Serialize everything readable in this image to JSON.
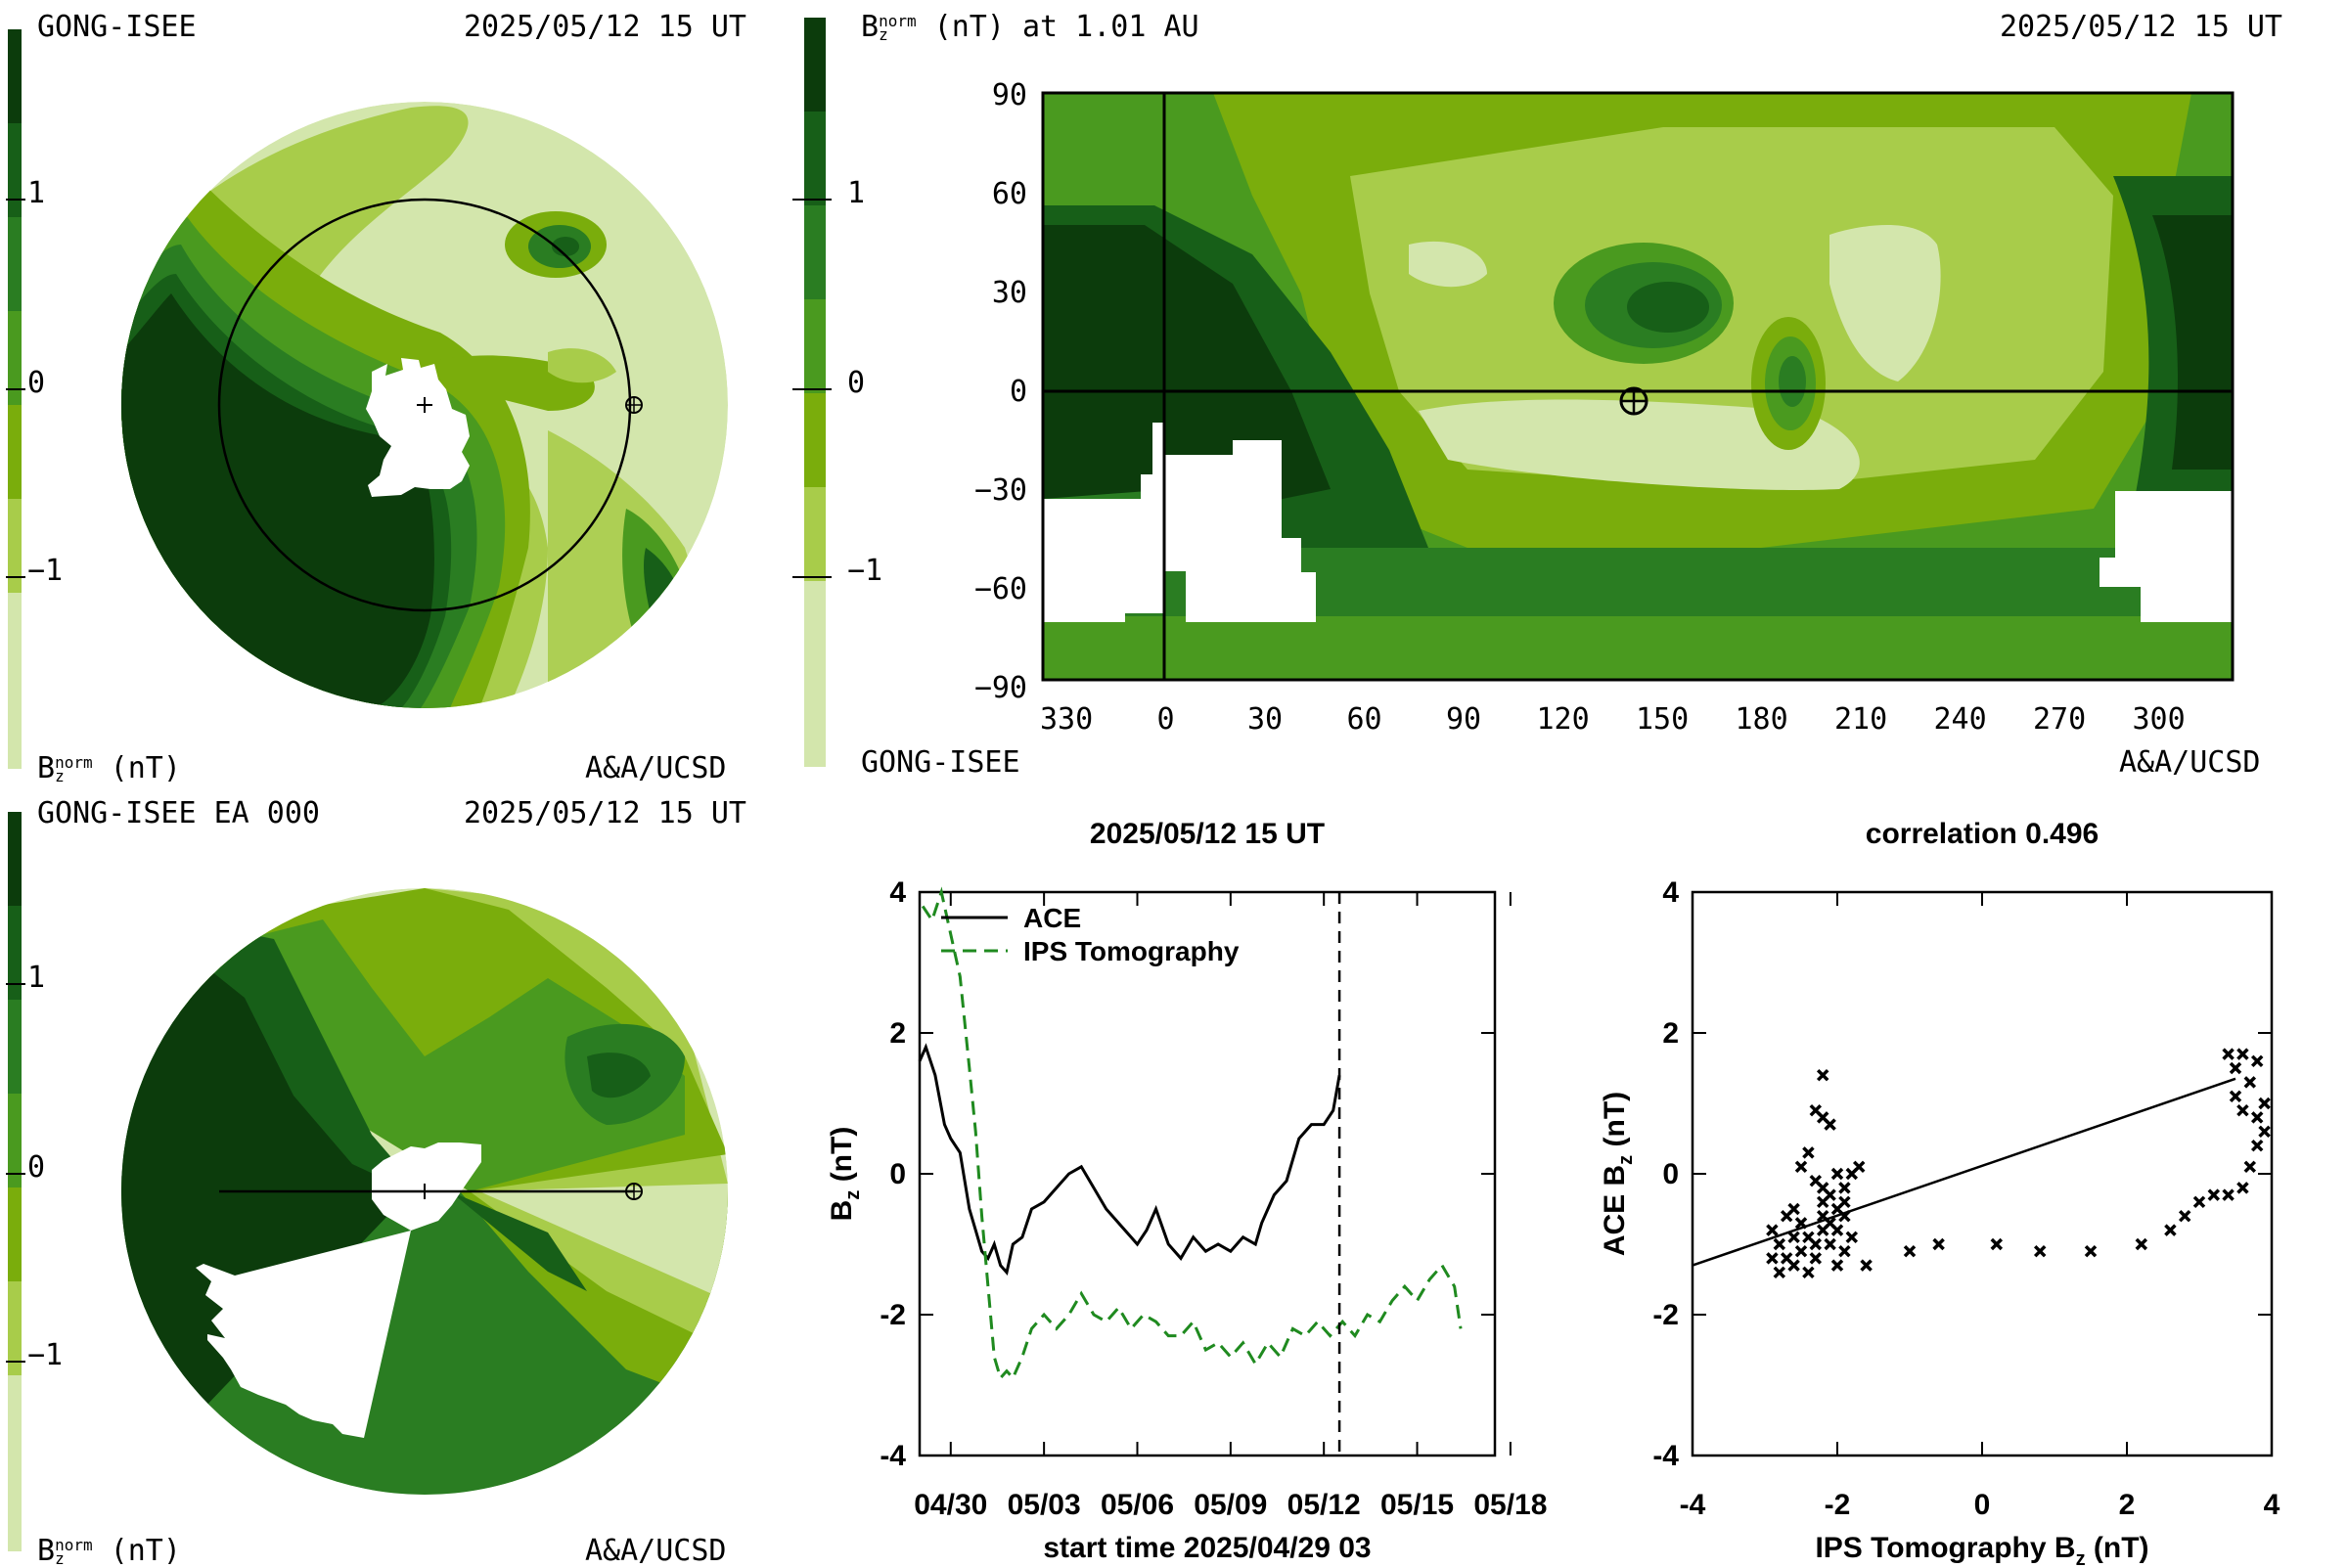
{
  "colors": {
    "scale": [
      "#d3e6ac",
      "#a8cc4a",
      "#7aad0c",
      "#4a9a1f",
      "#2a7d22",
      "#175f18",
      "#0c3c0c"
    ],
    "white": "#ffffff",
    "ips_line": "#1f8a1f",
    "ace_line": "#000000"
  },
  "colorbar": {
    "ticks": [
      "1",
      "0",
      "−1"
    ]
  },
  "panel_tl": {
    "title_left": "GONG-ISEE",
    "title_right": "2025/05/12 15 UT",
    "bottom_left": "B",
    "bottom_left_sub": "z",
    "bottom_left_sup": "norm",
    "bottom_left_unit": "(nT)",
    "bottom_right": "A&A/UCSD"
  },
  "panel_bl": {
    "title_left": "GONG-ISEE EA 000",
    "title_right": "2025/05/12 15 UT",
    "bottom_left": "B",
    "bottom_left_sub": "z",
    "bottom_left_sup": "norm",
    "bottom_left_unit": "(nT)",
    "bottom_right": "A&A/UCSD"
  },
  "panel_tr": {
    "title_left": "B",
    "title_left_sub": "z",
    "title_left_sup": "norm",
    "title_left_rest": "(nT) at 1.01 AU",
    "title_right": "2025/05/12 15 UT",
    "bottom_left": "GONG-ISEE",
    "bottom_right": "A&A/UCSD",
    "y_ticks": [
      "90",
      "60",
      "30",
      "0",
      "−30",
      "−60",
      "−90"
    ],
    "x_ticks": [
      "330",
      "0",
      "30",
      "60",
      "90",
      "120",
      "150",
      "180",
      "210",
      "240",
      "270",
      "300"
    ]
  },
  "chart_data": [
    {
      "type": "line",
      "title": "2025/05/12 15 UT",
      "xlabel": "start time 2025/04/29 03",
      "ylabel": "B_z (nT)",
      "ylim": [
        -4,
        4
      ],
      "x_unit": "days since start",
      "x_tick_labels": [
        "04/30",
        "05/03",
        "05/06",
        "05/09",
        "05/12",
        "05/15",
        "05/18"
      ],
      "y_tick_labels": [
        "4",
        "2",
        "0",
        "-2",
        "-4"
      ],
      "legend": [
        "ACE",
        "IPS Tomography"
      ],
      "current_time_marker": "2025/05/12 15 UT",
      "series": [
        {
          "name": "ACE",
          "x": [
            0.0,
            0.2,
            0.5,
            0.8,
            1.0,
            1.3,
            1.6,
            1.8,
            2.0,
            2.2,
            2.4,
            2.6,
            2.8,
            3.0,
            3.3,
            3.6,
            4.0,
            4.4,
            4.8,
            5.2,
            5.6,
            6.0,
            6.4,
            6.8,
            7.0,
            7.3,
            7.6,
            8.0,
            8.4,
            8.8,
            9.2,
            9.6,
            10.0,
            10.4,
            10.8,
            11.0,
            11.4,
            11.8,
            12.2,
            12.6,
            13.0,
            13.3,
            13.5
          ],
          "y": [
            1.6,
            1.8,
            1.4,
            0.7,
            0.5,
            0.3,
            -0.5,
            -0.8,
            -1.1,
            -1.2,
            -1.0,
            -1.3,
            -1.4,
            -1.0,
            -0.9,
            -0.5,
            -0.4,
            -0.2,
            0.0,
            0.1,
            -0.2,
            -0.5,
            -0.7,
            -0.9,
            -1.0,
            -0.8,
            -0.5,
            -1.0,
            -1.2,
            -0.9,
            -1.1,
            -1.0,
            -1.1,
            -0.9,
            -1.0,
            -0.7,
            -0.3,
            -0.1,
            0.5,
            0.7,
            0.7,
            0.9,
            1.4
          ]
        },
        {
          "name": "IPS Tomography",
          "x": [
            0.1,
            0.4,
            0.7,
            1.0,
            1.3,
            1.6,
            1.8,
            2.0,
            2.2,
            2.4,
            2.6,
            2.8,
            3.0,
            3.3,
            3.6,
            4.0,
            4.4,
            4.8,
            5.2,
            5.6,
            6.0,
            6.4,
            6.8,
            7.2,
            7.6,
            8.0,
            8.4,
            8.8,
            9.2,
            9.6,
            10.0,
            10.4,
            10.8,
            11.2,
            11.6,
            12.0,
            12.4,
            12.8,
            13.2,
            13.6,
            14.0,
            14.4,
            14.8,
            15.2,
            15.6,
            16.0,
            16.4,
            16.8,
            17.2,
            17.4
          ],
          "y": [
            3.8,
            3.6,
            4.0,
            3.4,
            2.8,
            1.5,
            0.6,
            -0.6,
            -1.6,
            -2.6,
            -2.9,
            -2.8,
            -2.9,
            -2.6,
            -2.2,
            -2.0,
            -2.2,
            -2.0,
            -1.7,
            -2.0,
            -2.1,
            -1.9,
            -2.2,
            -2.0,
            -2.1,
            -2.3,
            -2.3,
            -2.1,
            -2.5,
            -2.4,
            -2.6,
            -2.4,
            -2.7,
            -2.4,
            -2.6,
            -2.2,
            -2.3,
            -2.1,
            -2.3,
            -2.1,
            -2.3,
            -2.0,
            -2.1,
            -1.8,
            -1.6,
            -1.8,
            -1.5,
            -1.3,
            -1.6,
            -2.2
          ]
        }
      ]
    },
    {
      "type": "scatter",
      "title": "correlation 0.496",
      "xlabel": "IPS Tomography B_z (nT)",
      "ylabel": "ACE B_z (nT)",
      "xlim": [
        -4,
        4
      ],
      "ylim": [
        -4,
        4
      ],
      "x_tick_labels": [
        "-4",
        "-2",
        "0",
        "2",
        "4"
      ],
      "y_tick_labels": [
        "4",
        "2",
        "0",
        "-2",
        "-4"
      ],
      "regression_line": {
        "from": [
          -4.0,
          -1.3
        ],
        "to": [
          3.5,
          1.35
        ]
      },
      "points": [
        [
          -2.9,
          -0.8
        ],
        [
          -2.8,
          -1.0
        ],
        [
          -2.7,
          -1.2
        ],
        [
          -2.6,
          -0.9
        ],
        [
          -2.5,
          -1.1
        ],
        [
          -2.4,
          -0.9
        ],
        [
          -2.3,
          -1.0
        ],
        [
          -2.2,
          -0.8
        ],
        [
          -2.5,
          -0.7
        ],
        [
          -2.6,
          -1.3
        ],
        [
          -2.3,
          -1.2
        ],
        [
          -2.2,
          -0.6
        ],
        [
          -2.1,
          -0.7
        ],
        [
          -2.0,
          -0.5
        ],
        [
          -1.9,
          -0.4
        ],
        [
          -2.1,
          -0.3
        ],
        [
          -2.2,
          -0.2
        ],
        [
          -2.3,
          -0.1
        ],
        [
          -1.8,
          0.0
        ],
        [
          -1.9,
          -0.2
        ],
        [
          -2.0,
          0.0
        ],
        [
          -1.7,
          0.1
        ],
        [
          -2.2,
          0.8
        ],
        [
          -2.1,
          0.7
        ],
        [
          -2.3,
          0.9
        ],
        [
          -2.2,
          1.4
        ],
        [
          -2.4,
          0.3
        ],
        [
          -2.5,
          0.1
        ],
        [
          -2.6,
          -0.5
        ],
        [
          -2.7,
          -0.6
        ],
        [
          -2.8,
          -1.4
        ],
        [
          -2.0,
          -1.3
        ],
        [
          -1.9,
          -1.1
        ],
        [
          -1.8,
          -0.9
        ],
        [
          -2.9,
          -1.2
        ],
        [
          -2.4,
          -1.4
        ],
        [
          -2.1,
          -1.0
        ],
        [
          -2.0,
          -0.8
        ],
        [
          -1.9,
          -0.6
        ],
        [
          -2.2,
          -0.4
        ],
        [
          -1.6,
          -1.3
        ],
        [
          -1.0,
          -1.1
        ],
        [
          -0.6,
          -1.0
        ],
        [
          0.2,
          -1.0
        ],
        [
          0.8,
          -1.1
        ],
        [
          1.5,
          -1.1
        ],
        [
          2.2,
          -1.0
        ],
        [
          2.6,
          -0.8
        ],
        [
          2.8,
          -0.6
        ],
        [
          3.0,
          -0.4
        ],
        [
          3.2,
          -0.3
        ],
        [
          3.4,
          -0.3
        ],
        [
          3.6,
          -0.2
        ],
        [
          3.7,
          0.1
        ],
        [
          3.8,
          0.4
        ],
        [
          3.9,
          0.6
        ],
        [
          3.8,
          0.8
        ],
        [
          3.6,
          0.9
        ],
        [
          3.5,
          1.1
        ],
        [
          3.7,
          1.3
        ],
        [
          3.8,
          1.6
        ],
        [
          3.6,
          1.7
        ],
        [
          3.5,
          1.5
        ],
        [
          3.9,
          1.0
        ],
        [
          3.4,
          1.7
        ]
      ]
    }
  ]
}
